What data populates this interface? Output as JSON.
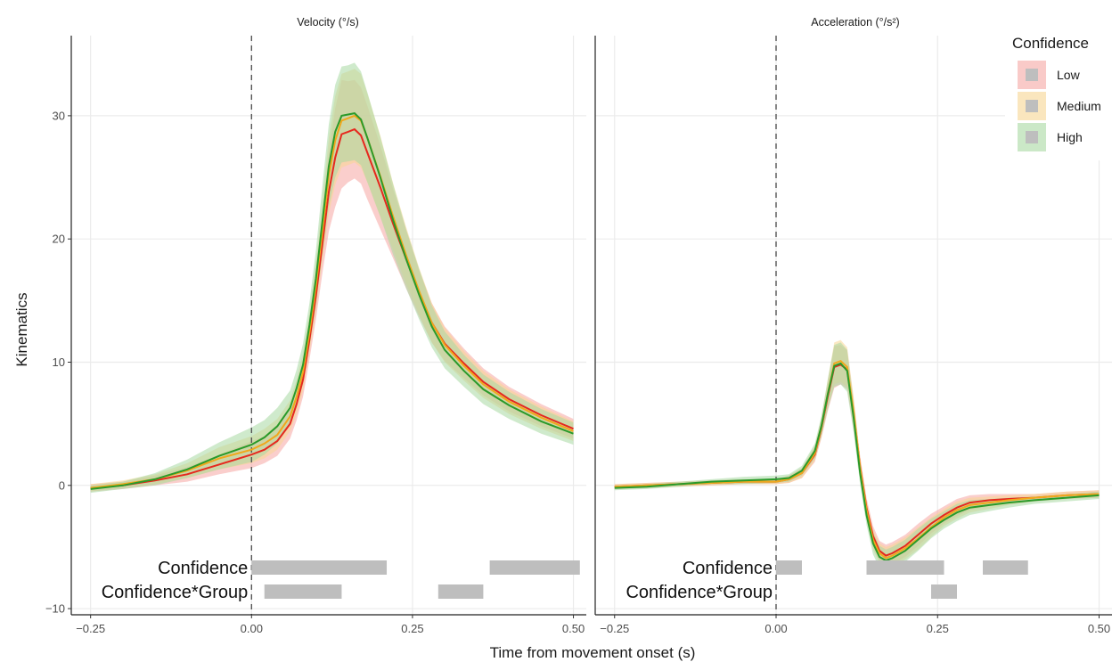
{
  "chart_data": {
    "type": "line",
    "xlabel": "Time from movement onset (s)",
    "ylabel": "Kinematics",
    "xlim": [
      -0.28,
      0.52
    ],
    "ylim": [
      -10.5,
      36.5
    ],
    "x_ticks": [
      -0.25,
      0.0,
      0.25,
      0.5
    ],
    "x_tick_labels": [
      "−0.25",
      "0.00",
      "0.25",
      "0.50"
    ],
    "y_ticks": [
      -10,
      0,
      10,
      20,
      30
    ],
    "y_tick_labels": [
      "−10",
      "0",
      "10",
      "20",
      "30"
    ],
    "onset_line_x": 0,
    "grid": true,
    "legend": {
      "title": "Confidence",
      "position": "right",
      "entries": [
        {
          "label": "Low",
          "color": "#e6281e"
        },
        {
          "label": "Medium",
          "color": "#f0a81c"
        },
        {
          "label": "High",
          "color": "#2a9a2a"
        }
      ]
    },
    "colors": {
      "Low": "#e6281e",
      "Medium": "#f0a81c",
      "High": "#2a9a2a",
      "sig_bar": "#bebebe"
    },
    "x": [
      -0.25,
      -0.2,
      -0.15,
      -0.1,
      -0.05,
      0.0,
      0.02,
      0.04,
      0.06,
      0.07,
      0.08,
      0.09,
      0.1,
      0.11,
      0.12,
      0.13,
      0.14,
      0.15,
      0.16,
      0.17,
      0.18,
      0.2,
      0.22,
      0.24,
      0.26,
      0.28,
      0.3,
      0.33,
      0.36,
      0.4,
      0.45,
      0.5
    ],
    "panels": [
      {
        "strip": "Velocity (°/s)",
        "series": [
          {
            "name": "Low",
            "values": [
              -0.2,
              0.0,
              0.4,
              0.9,
              1.7,
              2.5,
              2.9,
              3.6,
              5.0,
              6.6,
              8.6,
              11.8,
              15.4,
              19.6,
              23.8,
              26.6,
              28.5,
              28.7,
              28.9,
              28.4,
              27.0,
              24.2,
              21.2,
              18.4,
              15.6,
              13.2,
              11.5,
              9.9,
              8.4,
              7.0,
              5.7,
              4.6
            ],
            "lower": [
              -0.5,
              -0.3,
              0.0,
              0.3,
              0.9,
              1.4,
              1.8,
              2.4,
              3.8,
              5.3,
              7.2,
              10.2,
              13.5,
              17.2,
              20.6,
              22.6,
              24.1,
              24.6,
              24.9,
              24.5,
              23.2,
              20.8,
              18.4,
              16.0,
              13.7,
              11.6,
              10.1,
              8.7,
              7.3,
              6.0,
              4.8,
              3.8
            ],
            "upper": [
              0.1,
              0.3,
              0.8,
              1.5,
              2.5,
              3.6,
              4.0,
              4.8,
              6.3,
              8.0,
              10.0,
              13.4,
              17.3,
              22.0,
              27.0,
              30.6,
              32.9,
              32.8,
              32.9,
              32.3,
              30.8,
              27.6,
              24.0,
              20.8,
              17.5,
              14.8,
              12.9,
              11.1,
              9.5,
              8.0,
              6.6,
              5.4
            ]
          },
          {
            "name": "Medium",
            "values": [
              -0.2,
              0.1,
              0.5,
              1.2,
              2.2,
              2.9,
              3.4,
              4.1,
              5.6,
              7.2,
              9.2,
              12.4,
              16.2,
              20.6,
              25.1,
              28.0,
              29.6,
              29.8,
              30.0,
              29.6,
              28.2,
              25.1,
              21.8,
              18.7,
              15.8,
              13.2,
              11.4,
              9.7,
              8.2,
              6.8,
              5.5,
              4.4
            ],
            "lower": [
              -0.5,
              -0.2,
              0.1,
              0.6,
              1.3,
              1.8,
              2.2,
              2.9,
              4.4,
              5.8,
              7.7,
              10.8,
              14.2,
              18.2,
              22.0,
              24.4,
              25.8,
              26.0,
              26.2,
              25.8,
              24.6,
              21.8,
              19.1,
              16.4,
              13.9,
              11.6,
              10.0,
              8.5,
              7.1,
              5.8,
              4.6,
              3.6
            ],
            "upper": [
              0.1,
              0.4,
              0.9,
              1.8,
              3.1,
              4.0,
              4.6,
              5.4,
              6.9,
              8.6,
              10.7,
              14.0,
              18.2,
              23.0,
              28.2,
              31.6,
              33.4,
              33.6,
              33.8,
              33.4,
              31.8,
              28.4,
              24.5,
              21.0,
              17.7,
              14.8,
              12.8,
              10.9,
              9.3,
              7.8,
              6.4,
              5.2
            ]
          },
          {
            "name": "High",
            "values": [
              -0.3,
              0.0,
              0.5,
              1.3,
              2.4,
              3.3,
              3.9,
              4.8,
              6.3,
              7.9,
              9.8,
              13.0,
              16.8,
              21.4,
              25.9,
              28.7,
              30.0,
              30.1,
              30.2,
              29.7,
              28.2,
              25.0,
              21.5,
              18.4,
              15.5,
              12.9,
              11.0,
              9.3,
              7.8,
              6.5,
              5.2,
              4.2
            ],
            "lower": [
              -0.6,
              -0.3,
              0.0,
              0.6,
              1.3,
              1.9,
              2.5,
              3.4,
              4.9,
              6.4,
              8.2,
              11.2,
              14.6,
              18.7,
              22.6,
              25.0,
              26.2,
              26.3,
              26.4,
              26.0,
              24.6,
              21.8,
              18.7,
              16.0,
              13.5,
              11.2,
              9.5,
              8.0,
              6.6,
              5.4,
              4.2,
              3.3
            ],
            "upper": [
              0.0,
              0.3,
              1.0,
              2.1,
              3.5,
              4.7,
              5.3,
              6.3,
              7.7,
              9.4,
              11.5,
              14.8,
              19.1,
              24.3,
              29.3,
              32.5,
              34.0,
              34.1,
              34.3,
              33.6,
              31.9,
              28.3,
              24.4,
              20.8,
              17.6,
              14.6,
              12.5,
              10.6,
              9.0,
              7.6,
              6.2,
              5.1
            ]
          }
        ],
        "significance": [
          {
            "label": "Confidence",
            "intervals": [
              [
                0.0,
                0.21
              ],
              [
                0.37,
                0.51
              ]
            ]
          },
          {
            "label": "Confidence*Group",
            "intervals": [
              [
                0.02,
                0.14
              ],
              [
                0.29,
                0.36
              ]
            ]
          }
        ]
      },
      {
        "strip": "Acceleration (°/s²)",
        "series": [
          {
            "name": "Low",
            "values": [
              -0.1,
              0.0,
              0.1,
              0.2,
              0.3,
              0.3,
              0.5,
              1.0,
              2.5,
              4.6,
              7.2,
              9.6,
              9.8,
              9.4,
              5.8,
              1.5,
              -1.8,
              -4.1,
              -5.3,
              -5.7,
              -5.5,
              -4.9,
              -4.0,
              -3.1,
              -2.4,
              -1.8,
              -1.4,
              -1.2,
              -1.1,
              -1.0,
              -0.8,
              -0.7
            ],
            "lower": [
              -0.3,
              -0.2,
              -0.1,
              -0.0,
              0.1,
              0.1,
              0.2,
              0.6,
              1.9,
              3.8,
              6.0,
              7.9,
              8.2,
              7.8,
              4.6,
              0.6,
              -2.6,
              -4.9,
              -6.1,
              -6.6,
              -6.4,
              -5.8,
              -4.9,
              -3.9,
              -3.1,
              -2.5,
              -2.0,
              -1.7,
              -1.5,
              -1.3,
              -1.1,
              -1.0
            ],
            "upper": [
              0.1,
              0.2,
              0.3,
              0.4,
              0.5,
              0.5,
              0.8,
              1.4,
              3.1,
              5.4,
              8.4,
              11.3,
              11.4,
              11.0,
              7.0,
              2.4,
              -1.0,
              -3.3,
              -4.5,
              -4.8,
              -4.6,
              -4.0,
              -3.1,
              -2.3,
              -1.7,
              -1.1,
              -0.8,
              -0.7,
              -0.7,
              -0.7,
              -0.5,
              -0.4
            ]
          },
          {
            "name": "Medium",
            "values": [
              -0.1,
              0.0,
              0.1,
              0.2,
              0.3,
              0.3,
              0.5,
              1.0,
              2.6,
              4.7,
              7.4,
              9.9,
              10.1,
              9.6,
              6.0,
              1.4,
              -2.0,
              -4.4,
              -5.5,
              -5.9,
              -5.7,
              -5.1,
              -4.3,
              -3.4,
              -2.6,
              -2.0,
              -1.6,
              -1.4,
              -1.2,
              -1.0,
              -0.8,
              -0.7
            ],
            "lower": [
              -0.3,
              -0.2,
              -0.1,
              0.0,
              0.1,
              0.1,
              0.2,
              0.6,
              2.0,
              3.9,
              6.2,
              8.2,
              8.4,
              8.0,
              4.8,
              0.5,
              -2.8,
              -5.2,
              -6.3,
              -6.8,
              -6.6,
              -6.0,
              -5.2,
              -4.2,
              -3.3,
              -2.7,
              -2.2,
              -1.9,
              -1.6,
              -1.3,
              -1.1,
              -1.0
            ],
            "upper": [
              0.1,
              0.2,
              0.3,
              0.4,
              0.5,
              0.5,
              0.8,
              1.4,
              3.2,
              5.5,
              8.6,
              11.6,
              11.8,
              11.2,
              7.2,
              2.3,
              -1.2,
              -3.6,
              -4.7,
              -5.0,
              -4.8,
              -4.2,
              -3.4,
              -2.6,
              -1.9,
              -1.3,
              -1.0,
              -0.9,
              -0.8,
              -0.7,
              -0.5,
              -0.4
            ]
          },
          {
            "name": "High",
            "values": [
              -0.2,
              -0.1,
              0.1,
              0.3,
              0.4,
              0.5,
              0.6,
              1.2,
              2.8,
              4.8,
              7.4,
              9.7,
              9.9,
              9.3,
              5.5,
              1.0,
              -2.4,
              -4.7,
              -5.8,
              -6.1,
              -5.9,
              -5.3,
              -4.4,
              -3.5,
              -2.8,
              -2.2,
              -1.8,
              -1.6,
              -1.4,
              -1.2,
              -1.0,
              -0.8
            ],
            "lower": [
              -0.4,
              -0.3,
              -0.1,
              0.1,
              0.1,
              0.2,
              0.3,
              0.8,
              2.2,
              4.0,
              6.2,
              8.0,
              8.2,
              7.6,
              4.3,
              0.1,
              -3.2,
              -5.6,
              -6.7,
              -7.0,
              -6.8,
              -6.2,
              -5.3,
              -4.3,
              -3.5,
              -2.9,
              -2.4,
              -2.1,
              -1.8,
              -1.5,
              -1.3,
              -1.1
            ],
            "upper": [
              0.0,
              0.1,
              0.3,
              0.5,
              0.7,
              0.8,
              0.9,
              1.6,
              3.4,
              5.6,
              8.6,
              11.4,
              11.6,
              11.0,
              6.7,
              1.9,
              -1.6,
              -3.8,
              -4.9,
              -5.2,
              -5.0,
              -4.4,
              -3.5,
              -2.7,
              -2.1,
              -1.5,
              -1.2,
              -1.1,
              -1.0,
              -0.9,
              -0.7,
              -0.5
            ]
          }
        ],
        "significance": [
          {
            "label": "Confidence",
            "intervals": [
              [
                0.0,
                0.04
              ],
              [
                0.14,
                0.26
              ],
              [
                0.32,
                0.39
              ]
            ]
          },
          {
            "label": "Confidence*Group",
            "intervals": [
              [
                0.24,
                0.28
              ]
            ]
          }
        ]
      }
    ]
  }
}
